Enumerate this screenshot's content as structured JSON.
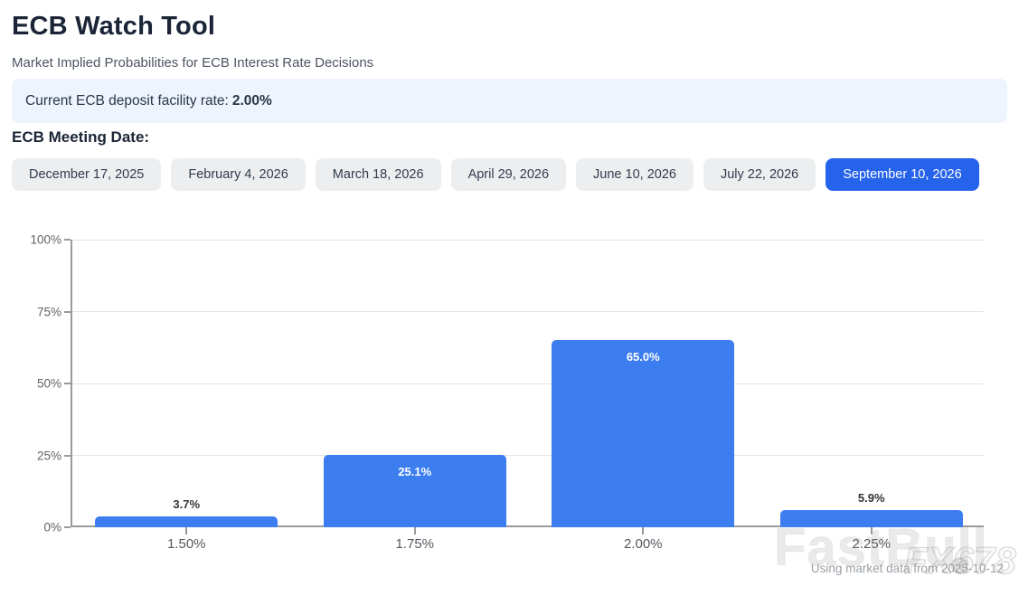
{
  "page": {
    "title": "ECB Watch Tool",
    "subtitle": "Market Implied Probabilities for ECB Interest Rate Decisions"
  },
  "banner": {
    "label": "Current ECB deposit facility rate:",
    "value": "2.00%"
  },
  "meeting_dates": {
    "heading": "ECB Meeting Date:",
    "options": [
      {
        "label": "December 17, 2025",
        "selected": false
      },
      {
        "label": "February 4, 2026",
        "selected": false
      },
      {
        "label": "March 18, 2026",
        "selected": false
      },
      {
        "label": "April 29, 2026",
        "selected": false
      },
      {
        "label": "June 10, 2026",
        "selected": false
      },
      {
        "label": "July 22, 2026",
        "selected": false
      },
      {
        "label": "September 10, 2026",
        "selected": true
      }
    ]
  },
  "chart_data": {
    "type": "bar",
    "title": "",
    "xlabel": "",
    "ylabel": "",
    "categories": [
      "1.50%",
      "1.75%",
      "2.00%",
      "2.25%"
    ],
    "values": [
      3.7,
      25.1,
      65.0,
      5.9
    ],
    "bar_labels": [
      "3.7%",
      "25.1%",
      "65.0%",
      "5.9%"
    ],
    "ylim": [
      0,
      100
    ],
    "yticks": [
      "0%",
      "25%",
      "50%",
      "75%",
      "100%"
    ],
    "grid": true,
    "legend": "none",
    "bar_color": "#3c7def"
  },
  "watermark": {
    "primary": "FastBull",
    "secondary": "FX678",
    "registered": "®"
  },
  "footer": {
    "caption": "Using market data from 2025-10-12"
  },
  "colors": {
    "accent": "#2563eb",
    "bar": "#3c7def",
    "banner_bg": "#edf4fe",
    "button_bg": "#eceef0",
    "axis": "#9a9a9a",
    "grid": "#e4e4e4"
  }
}
